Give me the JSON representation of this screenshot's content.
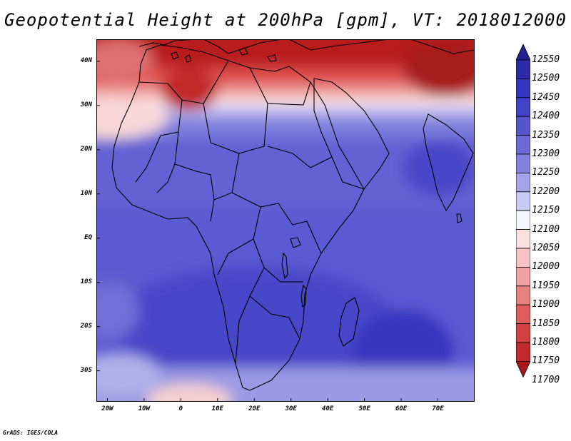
{
  "title": "Geopotential Height at 200hPa [gpm], VT: 2018012000",
  "credit": "GrADS: IGES/COLA",
  "map": {
    "lon_range": [
      -23,
      80
    ],
    "lat_range": [
      -37,
      45
    ],
    "y_ticks": [
      "40N",
      "30N",
      "20N",
      "10N",
      "EQ",
      "10S",
      "20S",
      "30S"
    ],
    "y_tick_values": [
      40,
      30,
      20,
      10,
      0,
      -10,
      -20,
      -30
    ],
    "x_ticks": [
      "20W",
      "10W",
      "0",
      "10E",
      "20E",
      "30E",
      "40E",
      "50E",
      "60E",
      "70E"
    ],
    "x_tick_values": [
      -20,
      -10,
      0,
      10,
      20,
      30,
      40,
      50,
      60,
      70
    ]
  },
  "colorbar": {
    "labels": [
      "12550",
      "12500",
      "12450",
      "12400",
      "12350",
      "12300",
      "12250",
      "12200",
      "12150",
      "12100",
      "12050",
      "12000",
      "11950",
      "11900",
      "11850",
      "11800",
      "11750",
      "11700"
    ],
    "colors": [
      "#21218f",
      "#2b2ba8",
      "#3535be",
      "#4343c8",
      "#5555cf",
      "#6a6ad6",
      "#8282de",
      "#a3a3e8",
      "#c9c9f2",
      "#f5f5ff",
      "#fbe0e0",
      "#f6c2c2",
      "#f0a0a0",
      "#e88080",
      "#de5c5c",
      "#d24040",
      "#c02a2a",
      "#a81a1a"
    ]
  }
}
